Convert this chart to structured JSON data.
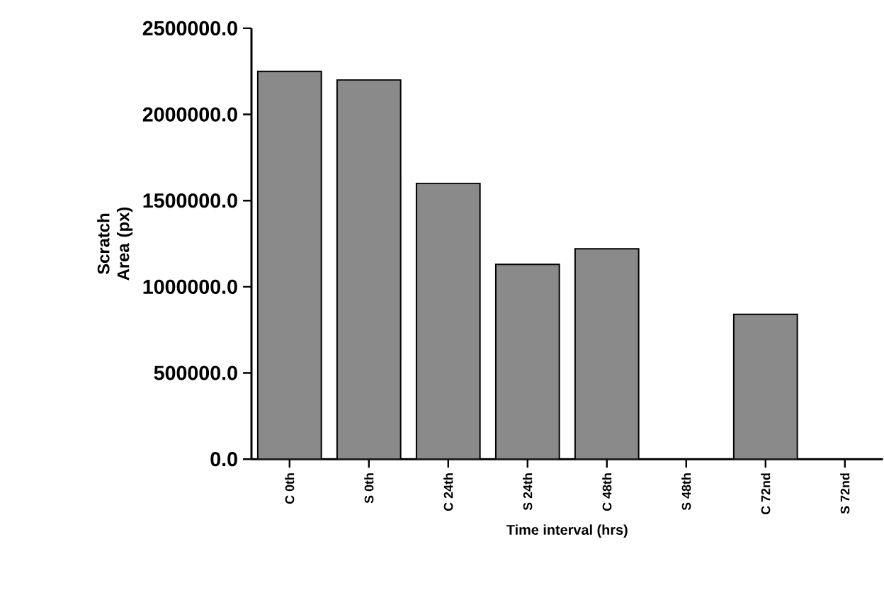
{
  "chart_data": {
    "type": "bar",
    "xlabel": "Time interval (hrs)",
    "ylabel": "Scratch Area (px)",
    "categories": [
      "C 0th",
      "S 0th",
      "C 24th",
      "S 24th",
      "C 48th",
      "S 48th",
      "C 72nd",
      "S 72nd"
    ],
    "values": [
      2250000,
      2200000,
      1600000,
      1130000,
      1220000,
      0,
      840000,
      0
    ],
    "color": "#8a8a8a",
    "ylim": [
      0,
      2500000
    ],
    "yticks": [
      {
        "value": 0,
        "label": "0.0"
      },
      {
        "value": 500000,
        "label": "500000.0"
      },
      {
        "value": 1000000,
        "label": "1000000.0"
      },
      {
        "value": 1500000,
        "label": "1500000.0"
      },
      {
        "value": 2000000,
        "label": "2000000.0"
      },
      {
        "value": 2500000,
        "label": "2500000.0"
      }
    ]
  }
}
